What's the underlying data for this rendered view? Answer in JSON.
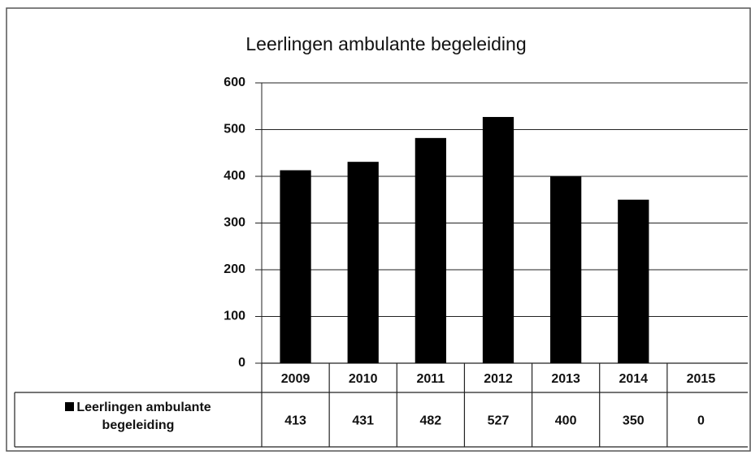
{
  "chart_data": {
    "type": "bar",
    "title": "Leerlingen ambulante begeleiding",
    "categories": [
      "2009",
      "2010",
      "2011",
      "2012",
      "2013",
      "2014",
      "2015"
    ],
    "series": [
      {
        "name": "Leerlingen ambulante begeleiding",
        "color": "#000000",
        "values": [
          413,
          431,
          482,
          527,
          400,
          350,
          0
        ]
      }
    ],
    "ylim": [
      0,
      600
    ],
    "yticks": [
      0,
      100,
      200,
      300,
      400,
      500,
      600
    ],
    "grid": true
  }
}
